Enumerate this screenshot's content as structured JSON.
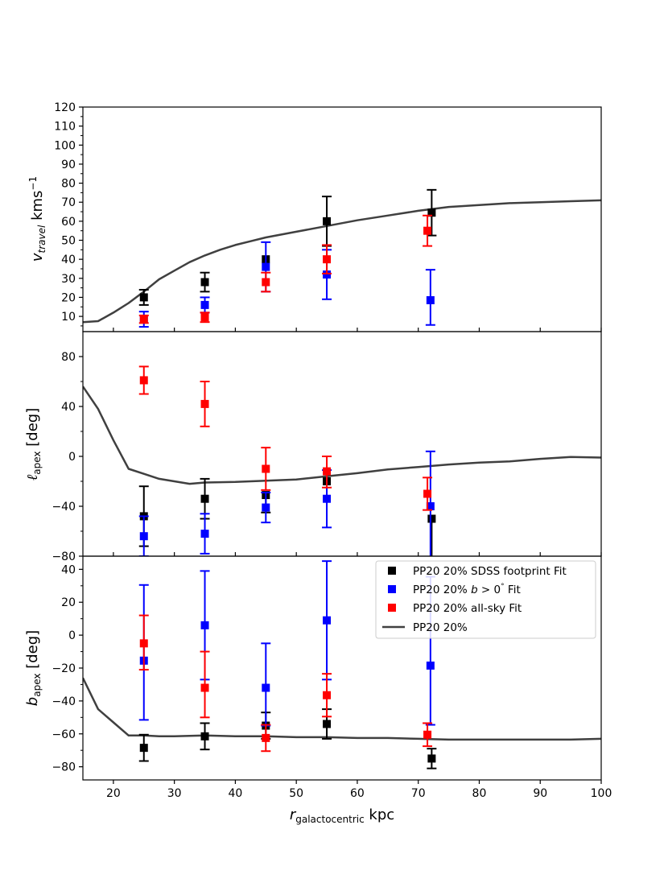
{
  "chart_data": [
    {
      "id": "vtravel",
      "type": "scatter",
      "ylabel": "v_travel kms^-1",
      "ylim": [
        2,
        120
      ],
      "yticks": [
        10,
        20,
        30,
        40,
        50,
        60,
        70,
        80,
        90,
        100,
        110,
        120
      ],
      "ytick_labels": [
        "10",
        "20",
        "30",
        "40",
        "50",
        "60",
        "70",
        "80",
        "90",
        "100",
        "110",
        "120"
      ],
      "yminor": [
        5,
        15,
        25,
        35,
        45,
        55,
        65,
        75,
        85,
        95,
        105,
        115
      ],
      "line": {
        "name": "PP20 20%",
        "x": [
          15,
          17.5,
          20,
          22.5,
          25,
          27.5,
          30,
          32.5,
          35,
          37.5,
          40,
          42.5,
          45,
          50,
          55,
          60,
          65,
          70,
          75,
          80,
          85,
          90,
          95,
          100
        ],
        "y": [
          7,
          7.5,
          12,
          17,
          23,
          29.5,
          34,
          38.5,
          42,
          45,
          47.5,
          49.5,
          51.5,
          54.5,
          57.5,
          60.5,
          63,
          65.5,
          67.5,
          68.5,
          69.5,
          70,
          70.5,
          71
        ]
      },
      "series": [
        {
          "name": "PP20 20% SDSS footprint Fit",
          "color": "#000000",
          "x": [
            25,
            35,
            45,
            55,
            72.2
          ],
          "y": [
            20,
            28,
            40,
            60,
            64.5
          ],
          "err_low": [
            4,
            5,
            0,
            13,
            12
          ],
          "err_high": [
            4,
            5,
            0,
            13,
            12
          ]
        },
        {
          "name": "PP20 20% b > 0° Fit",
          "color": "#0000ff",
          "x": [
            25,
            35,
            45,
            55,
            72
          ],
          "y": [
            8.5,
            16,
            36,
            32,
            18.5
          ],
          "err_low": [
            4,
            4,
            13,
            13,
            13
          ],
          "err_high": [
            4,
            4,
            13,
            13,
            16
          ]
        },
        {
          "name": "PP20 20% all-sky Fit",
          "color": "#ff0000",
          "x": [
            25,
            35,
            45,
            55,
            71.5
          ],
          "y": [
            8.5,
            9.5,
            28,
            40,
            55
          ],
          "err_low": [
            2,
            2.5,
            5,
            7.5,
            8
          ],
          "err_high": [
            2,
            2.5,
            5,
            7.5,
            8
          ]
        }
      ]
    },
    {
      "id": "lapex",
      "type": "scatter",
      "ylabel": "ℓ_apex [deg]",
      "ylim": [
        -80,
        100
      ],
      "yticks": [
        -80,
        -40,
        0,
        40,
        80
      ],
      "ytick_labels": [
        "−80",
        "−40",
        "0",
        "40",
        "80"
      ],
      "yminor": [
        -60,
        -20,
        20,
        60
      ],
      "line": {
        "name": "PP20 20%",
        "x": [
          15,
          17.5,
          20,
          22.5,
          25,
          27.5,
          30,
          32.5,
          35,
          40,
          45,
          50,
          55,
          60,
          65,
          70,
          75,
          80,
          85,
          90,
          95,
          100
        ],
        "y": [
          56,
          38,
          13,
          -10,
          -14,
          -18,
          -20,
          -22,
          -21,
          -20.5,
          -19.5,
          -18.5,
          -16,
          -13.5,
          -10.5,
          -8.5,
          -6.5,
          -5,
          -4,
          -2,
          -0.5,
          -1
        ]
      },
      "series": [
        {
          "name": "PP20 20% SDSS footprint Fit",
          "color": "#000000",
          "x": [
            25,
            35,
            45,
            55,
            72.2
          ],
          "y": [
            -48,
            -34,
            -31,
            -20,
            -50
          ],
          "err_low": [
            24,
            16,
            14,
            0,
            38
          ],
          "err_high": [
            24,
            16,
            0,
            0,
            0
          ]
        },
        {
          "name": "PP20 20% b > 0° Fit",
          "color": "#0000ff",
          "x": [
            25,
            35,
            45,
            55,
            72
          ],
          "y": [
            -64,
            -62,
            -41,
            -34,
            -40
          ],
          "err_low": [
            16,
            16,
            12,
            23,
            45
          ],
          "err_high": [
            16,
            16,
            12,
            23,
            44
          ]
        },
        {
          "name": "PP20 20% all-sky Fit",
          "color": "#ff0000",
          "x": [
            25,
            35,
            45,
            55,
            71.5
          ],
          "y": [
            61,
            42,
            -10,
            -12,
            -30
          ],
          "err_low": [
            11,
            18,
            17,
            13,
            13
          ],
          "err_high": [
            11,
            18,
            17,
            12,
            13
          ]
        }
      ]
    },
    {
      "id": "bapex",
      "type": "scatter",
      "ylabel": "b_apex [deg]",
      "ylim": [
        -88,
        48
      ],
      "yticks": [
        -80,
        -60,
        -40,
        -20,
        0,
        20,
        40
      ],
      "ytick_labels": [
        "−80",
        "−60",
        "−40",
        "−20",
        "0",
        "20",
        "40"
      ],
      "yminor": [
        -70,
        -50,
        -30,
        -10,
        10,
        30
      ],
      "line": {
        "name": "PP20 20%",
        "x": [
          15,
          17.5,
          20,
          22.5,
          25,
          27.5,
          30,
          35,
          40,
          45,
          50,
          55,
          60,
          65,
          70,
          75,
          80,
          85,
          90,
          95,
          100
        ],
        "y": [
          -26,
          -45,
          -53,
          -61,
          -61,
          -61.5,
          -61.5,
          -61,
          -61.5,
          -61.5,
          -62,
          -62,
          -62.5,
          -62.5,
          -63,
          -63.5,
          -63.5,
          -63.5,
          -63.5,
          -63.5,
          -63
        ]
      },
      "series": [
        {
          "name": "PP20 20% SDSS footprint Fit",
          "color": "#000000",
          "x": [
            25,
            35,
            45,
            55,
            72.2
          ],
          "y": [
            -68.5,
            -61.5,
            -55,
            -54,
            -75
          ],
          "err_low": [
            8,
            8,
            8,
            9,
            6
          ],
          "err_high": [
            8,
            8,
            8,
            9,
            6
          ]
        },
        {
          "name": "PP20 20% b > 0° Fit",
          "color": "#0000ff",
          "x": [
            25,
            35,
            45,
            55,
            72
          ],
          "y": [
            -15.5,
            6,
            -32,
            9,
            -18.5
          ],
          "err_low": [
            36,
            33,
            23,
            36,
            36
          ],
          "err_high": [
            46,
            33,
            27,
            36,
            54
          ]
        },
        {
          "name": "PP20 20% all-sky Fit",
          "color": "#ff0000",
          "x": [
            25,
            35,
            45,
            55,
            71.5
          ],
          "y": [
            -5,
            -32,
            -62.5,
            -36.5,
            -60.5
          ],
          "err_low": [
            16,
            18,
            8,
            13,
            7
          ],
          "err_high": [
            17,
            22,
            8,
            13,
            7
          ]
        }
      ]
    }
  ],
  "shared_x": {
    "xlim": [
      15,
      100
    ],
    "xticks": [
      20,
      30,
      40,
      50,
      60,
      70,
      80,
      90,
      100
    ],
    "xtick_labels": [
      "20",
      "30",
      "40",
      "50",
      "60",
      "70",
      "80",
      "90",
      "100"
    ],
    "xlabel": "r_galactocentric kpc"
  },
  "legend": {
    "placement": "top-right of bottom panel",
    "entries": [
      {
        "label": "PP20 20% SDSS footprint Fit",
        "color": "#000000",
        "kind": "marker"
      },
      {
        "label": "PP20 20% b > 0° Fit",
        "color": "#0000ff",
        "kind": "marker"
      },
      {
        "label": "PP20 20% all-sky Fit",
        "color": "#ff0000",
        "kind": "marker"
      },
      {
        "label": "PP20 20%",
        "color": "#404040",
        "kind": "line"
      }
    ]
  },
  "labels": {
    "v_symbol": "v",
    "v_sub": "travel",
    "v_unit": " kms",
    "v_sup": "−1",
    "l_symbol": "ℓ",
    "l_sub": "apex",
    "l_unit": " [deg]",
    "b_symbol": "b",
    "b_sub": "apex",
    "b_unit": " [deg]",
    "x_symbol": "r",
    "x_sub": "galactocentric",
    "x_unit": " kpc",
    "legend_1": "PP20 20% SDSS footprint Fit",
    "legend_2_pre": "PP20 20% ",
    "legend_2_var": "b",
    "legend_2_mid": " > 0",
    "legend_2_deg": "°",
    "legend_2_post": " Fit",
    "legend_3": "PP20 20% all-sky Fit",
    "legend_4": "PP20 20%"
  }
}
